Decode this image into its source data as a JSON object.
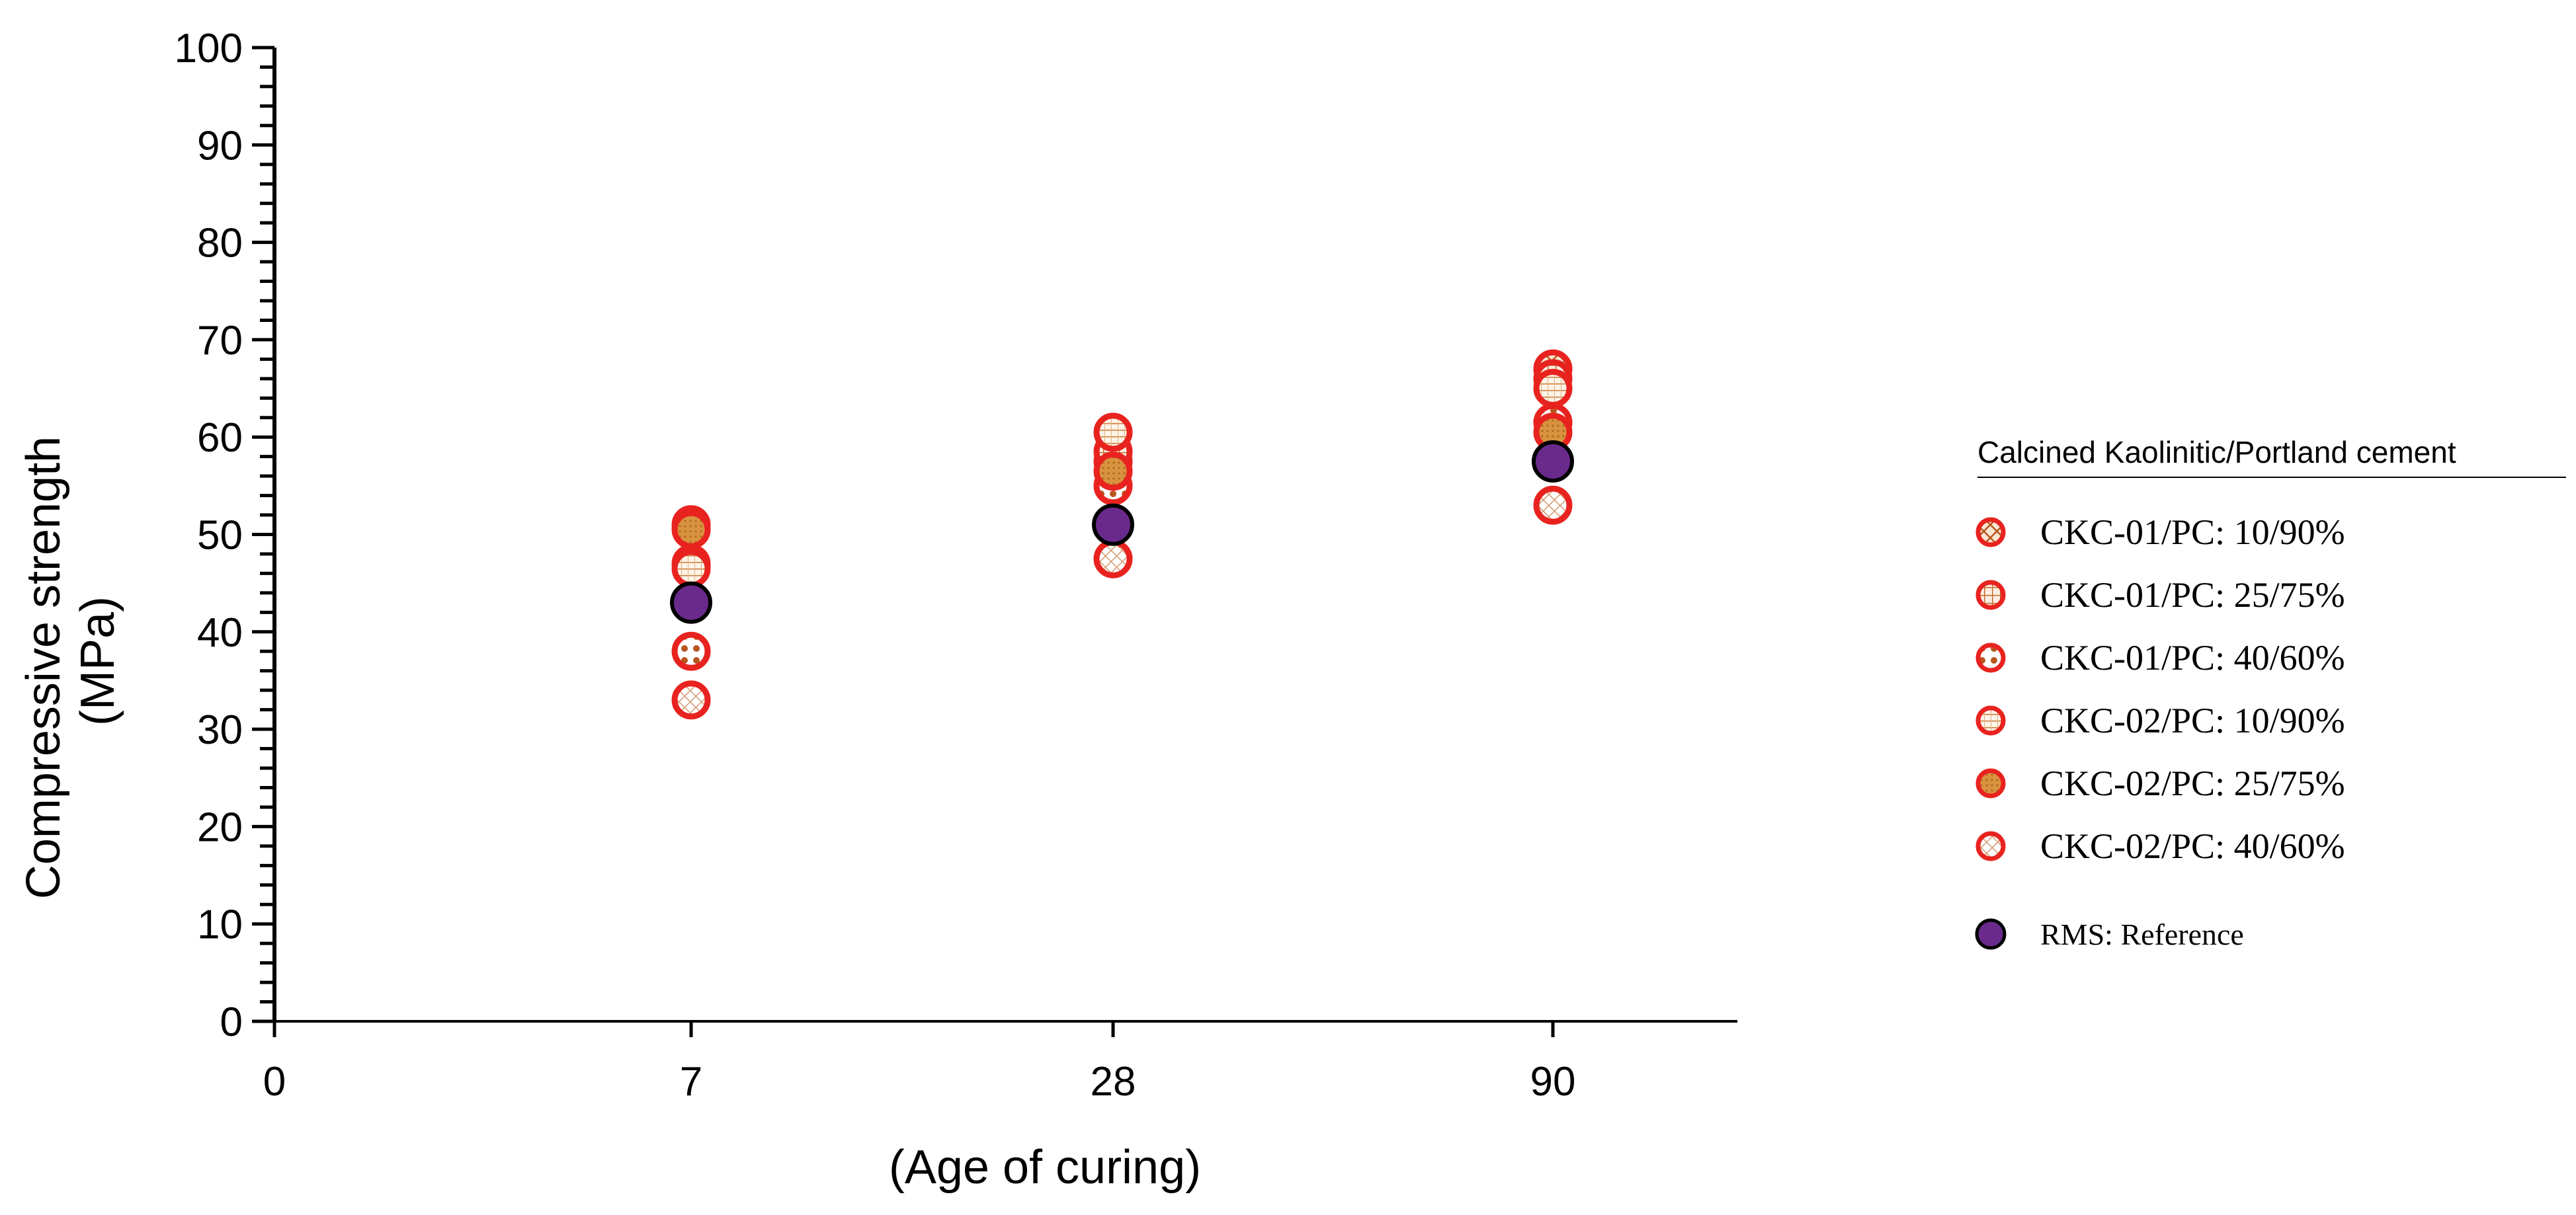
{
  "chart_data": {
    "type": "scatter",
    "title": "",
    "xlabel": "(Age of curing)",
    "ylabel_line1": "Compressive strength",
    "ylabel_line2": "(MPa)",
    "ylim": [
      0,
      100
    ],
    "y_major_step": 10,
    "y_minor_step": 2,
    "x_tick_labels": [
      "0",
      "7",
      "28",
      "90"
    ],
    "y_tick_labels": [
      "0",
      "10",
      "20",
      "30",
      "40",
      "50",
      "60",
      "70",
      "80",
      "90",
      "100"
    ],
    "categories": [
      "7",
      "28",
      "90"
    ],
    "legend_title": "Calcined Kaolinitic/Portland cement",
    "legend_position": "right",
    "series": [
      {
        "name": "CKC-01/PC: 10/90%",
        "pattern": "crosshatch",
        "values": [
          51.0,
          57.5,
          67.0
        ]
      },
      {
        "name": "CKC-01/PC: 25/75%",
        "pattern": "grid",
        "values": [
          47.0,
          58.5,
          66.0
        ]
      },
      {
        "name": "CKC-01/PC: 40/60%",
        "pattern": "dots",
        "values": [
          38.0,
          55.0,
          61.5
        ]
      },
      {
        "name": "CKC-02/PC: 10/90%",
        "pattern": "hlines",
        "values": [
          46.5,
          60.5,
          65.0
        ]
      },
      {
        "name": "CKC-02/PC: 25/75%",
        "pattern": "solid-tan",
        "values": [
          50.5,
          56.5,
          60.5
        ]
      },
      {
        "name": "CKC-02/PC: 40/60%",
        "pattern": "diagonal",
        "values": [
          33.0,
          47.5,
          53.0
        ]
      }
    ],
    "reference": {
      "name": "RMS: Reference",
      "values": [
        43.0,
        51.0,
        57.5
      ]
    },
    "colors": {
      "marker_edge": "#e8231f",
      "pattern": "#b8561e",
      "tan_fill": "#d9933f",
      "reference_fill": "#6a2a8c",
      "reference_edge": "#000000",
      "axis": "#000000"
    }
  }
}
